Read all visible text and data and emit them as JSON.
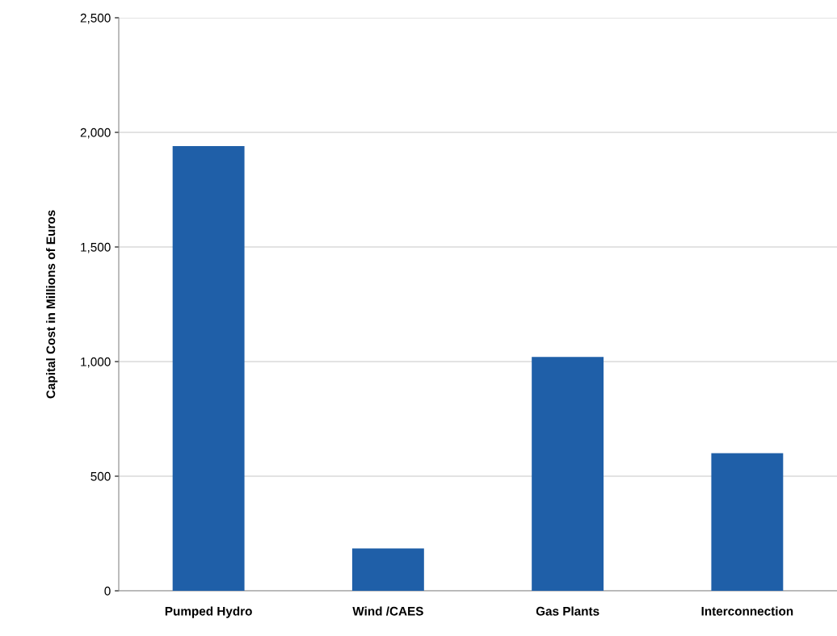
{
  "chart_data": {
    "type": "bar",
    "ylabel": "Capital Cost in Millions of Euros",
    "categories": [
      "Pumped Hydro",
      "Wind /CAES",
      "Gas Plants",
      "Interconnection"
    ],
    "values": [
      1940,
      185,
      1020,
      600
    ],
    "color": "#1f5fa8",
    "ylim": [
      0,
      2500
    ],
    "yticks": [
      {
        "value": 0,
        "label": "0"
      },
      {
        "value": 500,
        "label": "500"
      },
      {
        "value": 1000,
        "label": "1,000"
      },
      {
        "value": 1500,
        "label": "1,500"
      },
      {
        "value": 2000,
        "label": "2,000"
      },
      {
        "value": 2500,
        "label": "2,500"
      }
    ],
    "grid": "y"
  }
}
